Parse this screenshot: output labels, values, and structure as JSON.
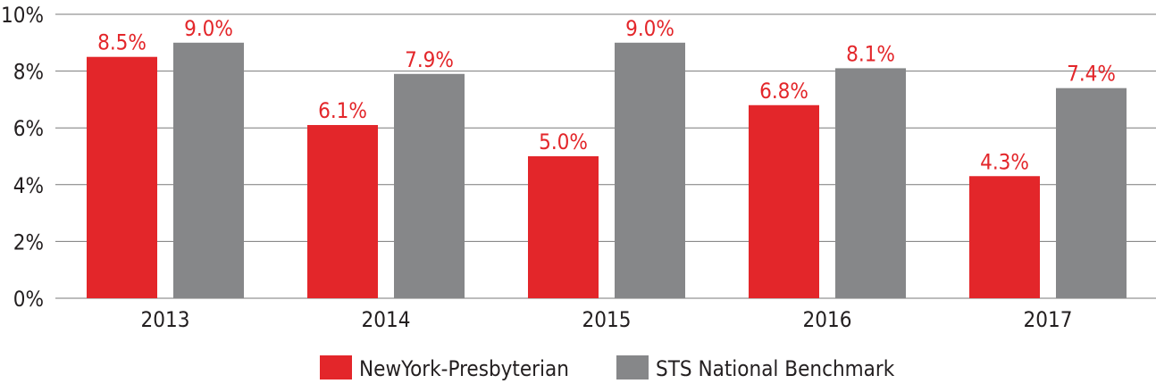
{
  "chart_data": {
    "type": "bar",
    "categories": [
      "2013",
      "2014",
      "2015",
      "2016",
      "2017"
    ],
    "series": [
      {
        "name": "NewYork-Presbyterian",
        "color": "#e3262a",
        "values": [
          8.5,
          6.1,
          5.0,
          6.8,
          4.3
        ],
        "labels": [
          "8.5%",
          "6.1%",
          "5.0%",
          "6.8%",
          "4.3%"
        ]
      },
      {
        "name": "STS National Benchmark",
        "color": "#868789",
        "values": [
          9.0,
          7.9,
          9.0,
          8.1,
          7.4
        ],
        "labels": [
          "9.0%",
          "7.9%",
          "9.0%",
          "8.1%",
          "7.4%"
        ]
      }
    ],
    "yticks": [
      {
        "value": 0,
        "label": "0%"
      },
      {
        "value": 2,
        "label": "2%"
      },
      {
        "value": 4,
        "label": "4%"
      },
      {
        "value": 6,
        "label": "6%"
      },
      {
        "value": 8,
        "label": "8%"
      },
      {
        "value": 10,
        "label": "10%"
      }
    ],
    "ylim": [
      0,
      10
    ],
    "grid": true,
    "legend_position": "bottom-center",
    "title": "",
    "xlabel": "",
    "ylabel": ""
  }
}
